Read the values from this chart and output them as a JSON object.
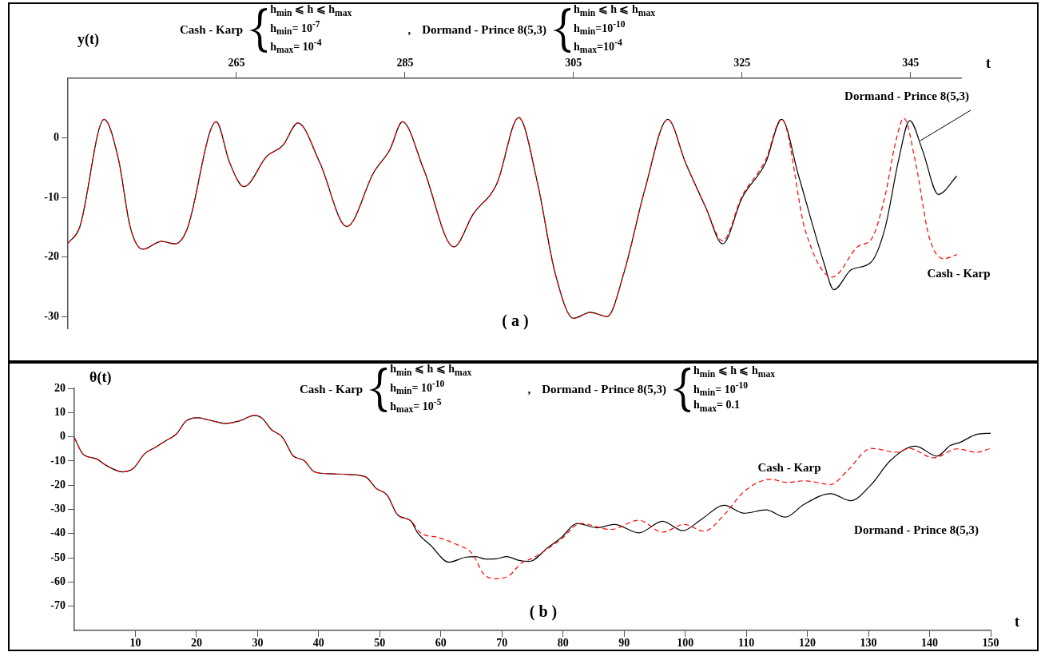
{
  "chart_data": [
    {
      "type": "line",
      "xlabel": "t",
      "ylabel": "y(t)",
      "xlim": [
        245,
        351
      ],
      "xticks": [
        265,
        285,
        305,
        325,
        345
      ],
      "ylim": [
        -32,
        10
      ],
      "yticks": [
        0,
        -10,
        -20,
        -30
      ],
      "marker": "none",
      "legend": false,
      "annotations": [
        "Cash - Karp",
        "h$_{min}$ ⩽ h ⩽  h$_{max}$",
        "h$_{min}$= 10$^{-7}$",
        "h$_{max}$= 10$^{-4}$",
        ",",
        "Dormand - Prince 8(5,3)",
        "h$_{min}$ ⩽ h ⩽  h$_{max}$",
        "h$_{min}$=10$^{-10}$",
        "h$_{max}$=10$^{-4}$",
        "( a )"
      ],
      "series": [
        {
          "name": "Dormand - Prince 8(5,3)",
          "color": "#000000",
          "line_style": "solid",
          "x": [
            245,
            246.4,
            249.3,
            251,
            252.4,
            253.9,
            256.1,
            257.7,
            259.1,
            262.6,
            264.2,
            265.9,
            268.6,
            270.5,
            272.3,
            274.9,
            278.1,
            281.3,
            283.2,
            284.7,
            287.2,
            290.8,
            293.1,
            295.9,
            298.5,
            300.7,
            302.8,
            305,
            307,
            309,
            311,
            313.5,
            316.2,
            318.3,
            320.7,
            322.7,
            325,
            327.8,
            329.7,
            331.7,
            334.7,
            335.9,
            338,
            340.3,
            342,
            343.6,
            344.9,
            346.4,
            348.3,
            350.5
          ],
          "values": [
            -17.7,
            -15,
            3.1,
            -3.6,
            -15,
            -18.7,
            -17.4,
            -17.8,
            -15.5,
            2.7,
            -4.2,
            -8.2,
            -3.1,
            -1.3,
            2.5,
            -4.2,
            -14.9,
            -5.8,
            -2,
            2.7,
            -5.2,
            -18.3,
            -12.8,
            -7.7,
            3.4,
            -7.4,
            -22.6,
            -30.3,
            -29.3,
            -30,
            -22.6,
            -8.5,
            3.1,
            -4.2,
            -11.7,
            -17.8,
            -10.1,
            -4.2,
            3.1,
            -6.3,
            -20.9,
            -25.5,
            -22.1,
            -20.9,
            -15,
            -3.6,
            2.9,
            -2,
            -9.5,
            -6.4
          ]
        },
        {
          "name": "Cash - Karp",
          "color": "#ff0000",
          "line_style": "dashed",
          "x": [
            245,
            246.4,
            249.3,
            251,
            252.4,
            253.9,
            256.1,
            257.7,
            259.1,
            262.6,
            264.2,
            265.9,
            268.6,
            270.5,
            272.3,
            274.9,
            278.1,
            281.3,
            283.2,
            284.7,
            287.2,
            290.8,
            293.1,
            295.9,
            298.5,
            300.7,
            302.8,
            305,
            307,
            309,
            311,
            313.5,
            316.2,
            318.3,
            320.7,
            322.7,
            325,
            327.8,
            329.7,
            332.5,
            335.7,
            338.8,
            340.4,
            342,
            343.2,
            344.2,
            345.6,
            347.2,
            348.9,
            350.5
          ],
          "values": [
            -17.7,
            -15,
            3.1,
            -3.6,
            -15,
            -18.7,
            -17.4,
            -17.8,
            -15.5,
            2.7,
            -4.2,
            -8.2,
            -3.1,
            -1.3,
            2.5,
            -4.2,
            -14.9,
            -5.8,
            -2,
            2.7,
            -5.2,
            -18.3,
            -12.8,
            -7.7,
            3.4,
            -7.4,
            -22.6,
            -30.3,
            -29.3,
            -30,
            -22.6,
            -8.5,
            3.1,
            -4.2,
            -11.7,
            -17.3,
            -9.8,
            -3.7,
            3.2,
            -15.5,
            -23.4,
            -18.2,
            -16.9,
            -9.6,
            -0.9,
            3.3,
            -4.2,
            -16.6,
            -20.3,
            -19.6
          ]
        }
      ]
    },
    {
      "type": "line",
      "xlabel": "t",
      "ylabel": "θ(t)",
      "xlim": [
        0,
        150
      ],
      "xticks": [
        10,
        20,
        30,
        40,
        50,
        60,
        70,
        80,
        90,
        100,
        110,
        120,
        130,
        140,
        150
      ],
      "ylim": [
        -80,
        20
      ],
      "yticks": [
        20,
        10,
        0,
        -10,
        -20,
        -30,
        -40,
        -50,
        -60,
        -70
      ],
      "marker": "none",
      "legend": false,
      "annotations": [
        "Cash - Karp",
        "h$_{min}$ ⩽ h ⩽  h$_{max}$",
        "h$_{min}$= 10$^{-10}$",
        "h$_{max}$= 10$^{-5}$",
        ",",
        "Dormand - Prince 8(5,3)",
        "h$_{min}$ ⩽ h ⩽  h$_{max}$",
        "h$_{min}$= 10$^{-10}$",
        "h$_{max}$= 0.1",
        "( b )"
      ],
      "series": [
        {
          "name": "Dormand - Prince 8(5,3)",
          "color": "#000000",
          "line_style": "solid",
          "x": [
            0,
            1.4,
            3.6,
            5.2,
            7.9,
            9.6,
            11.5,
            13.4,
            15,
            16.7,
            18.3,
            20.2,
            22.7,
            24.8,
            27,
            29.5,
            30.8,
            32.2,
            34.1,
            35.8,
            37.6,
            39.3,
            41.2,
            45,
            47.7,
            49.4,
            51.2,
            52.9,
            55.1,
            56.2,
            58.4,
            61.3,
            64,
            65.7,
            67.3,
            69,
            70.8,
            72.8,
            74.5,
            77.5,
            79.7,
            82.3,
            85.6,
            88.4,
            92.4,
            96.3,
            99.6,
            102.6,
            106.4,
            109.6,
            113.2,
            116.4,
            119.4,
            123.8,
            127.1,
            130.4,
            133.6,
            137.7,
            141.2,
            143.4,
            145,
            147.7,
            150
          ],
          "values": [
            -0.3,
            -7.1,
            -9.1,
            -11.8,
            -14.5,
            -13.2,
            -7.1,
            -4.2,
            -1.6,
            1.1,
            6.5,
            7.8,
            6.5,
            5.5,
            6.5,
            8.8,
            7.5,
            3.1,
            -0.3,
            -7.8,
            -9.8,
            -14.5,
            -15.2,
            -15.6,
            -16.6,
            -21.3,
            -24.1,
            -32.2,
            -34.8,
            -39.7,
            -45,
            -51.8,
            -49.8,
            -49.5,
            -50.5,
            -50.4,
            -49.5,
            -51.1,
            -51.5,
            -45.8,
            -41.7,
            -35.8,
            -37.6,
            -36.2,
            -39.7,
            -34.9,
            -38.8,
            -34.2,
            -28.3,
            -31.6,
            -30.2,
            -33.2,
            -28,
            -23.5,
            -26.4,
            -19.9,
            -9.8,
            -3.9,
            -8,
            -3.6,
            -2.3,
            1,
            1.5
          ]
        },
        {
          "name": "Cash - Karp",
          "color": "#ff0000",
          "line_style": "dashed",
          "x": [
            0,
            1.4,
            3.6,
            5.2,
            7.9,
            9.6,
            11.5,
            13.4,
            15,
            16.7,
            18.3,
            20.2,
            22.7,
            24.8,
            27,
            29.5,
            30.8,
            32.2,
            34.1,
            35.8,
            37.6,
            39.3,
            41.2,
            45,
            47.7,
            49.4,
            51.2,
            52.9,
            55.1,
            56.7,
            59.7,
            62.4,
            65.2,
            67,
            69,
            71.2,
            73.1,
            75.3,
            79.7,
            82.9,
            87.8,
            92.4,
            96.3,
            99.8,
            103.1,
            106.4,
            109.6,
            114,
            116.7,
            119.4,
            123.8,
            126.6,
            130.4,
            134.7,
            136.6,
            140.7,
            144.5,
            147.7,
            150
          ],
          "values": [
            -0.3,
            -7.1,
            -9.1,
            -11.8,
            -14.5,
            -13.2,
            -7.1,
            -4.2,
            -1.6,
            1.1,
            6.5,
            7.8,
            6.5,
            5.5,
            6.5,
            8.8,
            7.5,
            3.1,
            -0.3,
            -7.8,
            -9.8,
            -14.5,
            -15.2,
            -15.6,
            -16.6,
            -21.3,
            -24.1,
            -32.2,
            -34.8,
            -39.7,
            -41.7,
            -44.3,
            -48.5,
            -56.7,
            -58.6,
            -57.3,
            -52.4,
            -49.8,
            -42.3,
            -35.8,
            -38.3,
            -34.5,
            -39.4,
            -36.2,
            -39,
            -32.2,
            -22.7,
            -17.6,
            -18.9,
            -18.2,
            -19.7,
            -13.9,
            -4.8,
            -6.4,
            -4.8,
            -8.7,
            -5,
            -6.4,
            -4.8
          ]
        }
      ]
    }
  ]
}
